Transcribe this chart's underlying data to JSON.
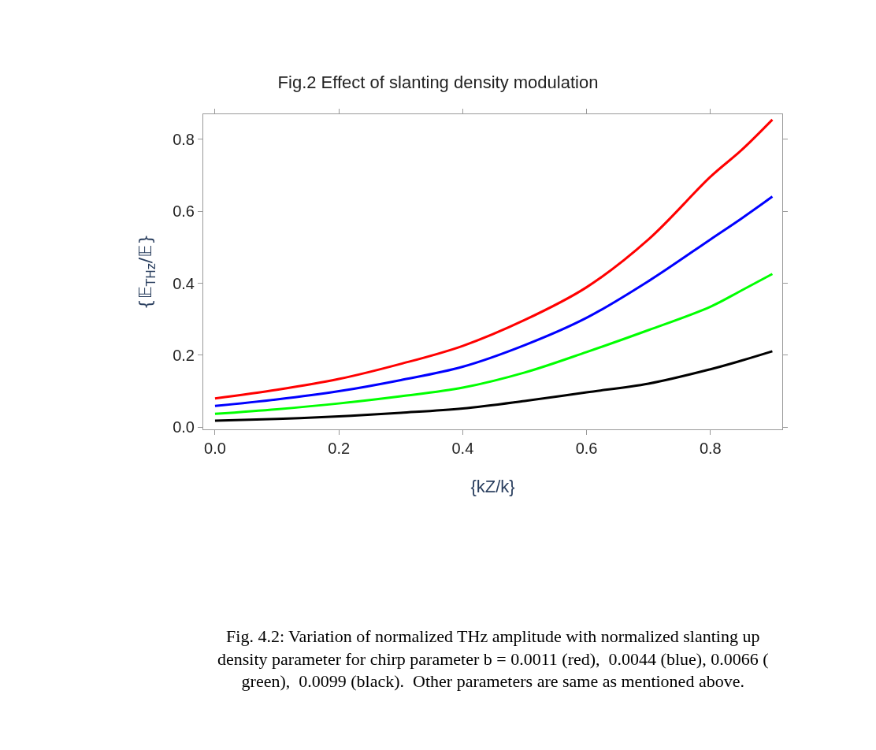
{
  "chart_data": {
    "type": "line",
    "title": "Fig.2 Effect of slanting density modulation",
    "xlabel": "{kZ/k}",
    "ylabel": "{𝔼$_{THz}$/𝔼}",
    "x": [
      0,
      0.1,
      0.2,
      0.3,
      0.4,
      0.5,
      0.6,
      0.7,
      0.8,
      0.85,
      0.9
    ],
    "series": [
      {
        "color": "#ff0000",
        "values": [
          0.08,
          0.104,
          0.134,
          0.176,
          0.226,
          0.298,
          0.389,
          0.522,
          0.696,
          0.77,
          0.855
        ]
      },
      {
        "color": "#0000ff",
        "values": [
          0.059,
          0.077,
          0.1,
          0.131,
          0.168,
          0.228,
          0.304,
          0.406,
          0.522,
          0.58,
          0.641
        ]
      },
      {
        "color": "#00ff00",
        "values": [
          0.037,
          0.05,
          0.066,
          0.086,
          0.11,
          0.152,
          0.209,
          0.27,
          0.335,
          0.38,
          0.426
        ]
      },
      {
        "color": "#000000",
        "values": [
          0.018,
          0.023,
          0.03,
          0.04,
          0.052,
          0.073,
          0.097,
          0.121,
          0.161,
          0.185,
          0.211
        ]
      }
    ],
    "xlim": [
      -0.019,
      0.916
    ],
    "ylim": [
      -0.006,
      0.87
    ],
    "xticks": [
      {
        "value": 0,
        "label": "0.0"
      },
      0.2,
      0.4,
      0.6,
      0.8
    ],
    "yticks": [
      {
        "value": 0,
        "label": "0.0"
      },
      0.2,
      0.4,
      0.6,
      0.8
    ],
    "marker": "none",
    "line_style": "solid",
    "annotations": [
      "Fig. 4.2: Variation of normalized THz amplitude with normalized slanting up density parameter for chirp parameter b = 0.0011 (red),  0.0044 (blue), 0.0066 ( green),  0.0099 (black).  Other parameters are same as mentioned above."
    ]
  }
}
